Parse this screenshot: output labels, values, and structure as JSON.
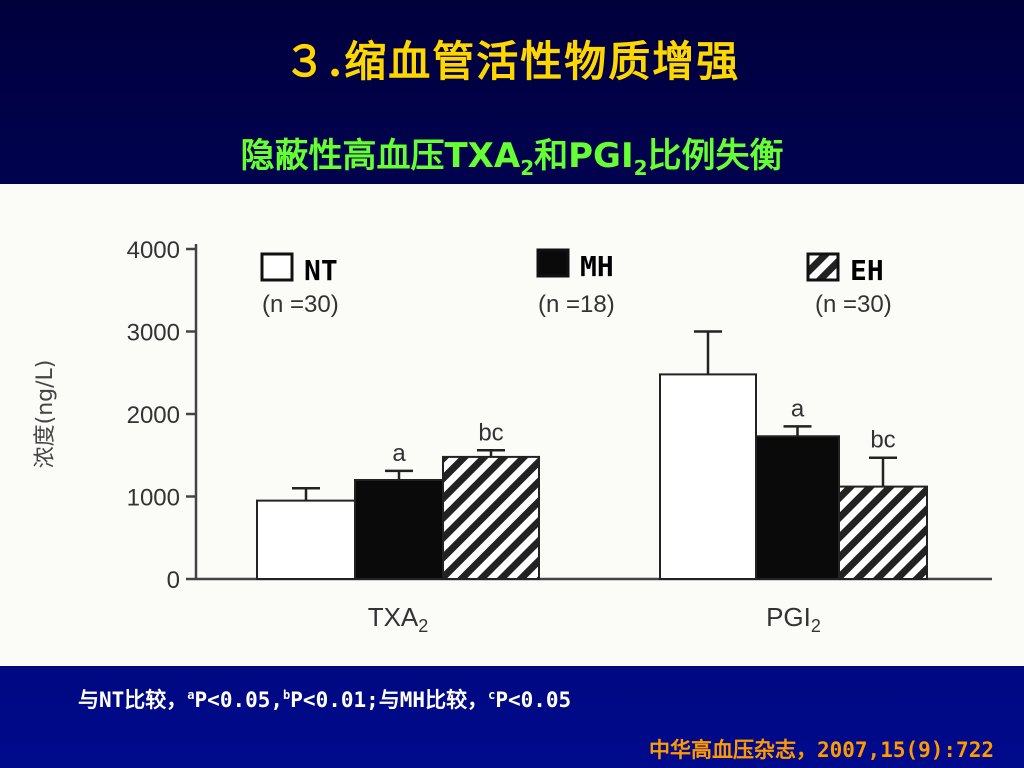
{
  "slide": {
    "title": "３.缩血管活性物质增强",
    "subtitle_part1": "隐蔽性高血压TXA",
    "subtitle_sub1": "2",
    "subtitle_part2": "和PGI",
    "subtitle_sub2": "2",
    "subtitle_part3": "比例失衡",
    "footnote_pre": "与NT比较，",
    "footnote_a_sup": "a",
    "footnote_a": "P<0.05,",
    "footnote_b_sup": "b",
    "footnote_b": "P<0.01;与MH比较，",
    "footnote_c_sup": "c",
    "footnote_c": "P<0.05",
    "source": "中华高血压杂志，2007,15(9):722"
  },
  "chart_data": {
    "type": "bar",
    "ylabel": "浓度(ng/L)",
    "ylim": [
      0,
      4000
    ],
    "yticks": [
      "0",
      "1000",
      "2000",
      "3000",
      "4000"
    ],
    "categories": [
      {
        "main": "TXA",
        "sub": "2"
      },
      {
        "main": "PGI",
        "sub": "2"
      }
    ],
    "series": [
      {
        "name": "NT",
        "n_label": "(n =30)",
        "style": "white",
        "values": [
          950,
          2480
        ],
        "errors": [
          150,
          520
        ],
        "sig": [
          "",
          ""
        ]
      },
      {
        "name": "MH",
        "n_label": "(n =18)",
        "style": "black",
        "values": [
          1200,
          1730
        ],
        "errors": [
          110,
          120
        ],
        "sig": [
          "a",
          "a"
        ]
      },
      {
        "name": "EH",
        "n_label": "(n =30)",
        "style": "hatched",
        "values": [
          1480,
          1120
        ],
        "errors": [
          80,
          350
        ],
        "sig": [
          "bc",
          "bc"
        ]
      }
    ],
    "legend_placement": "top",
    "grid": false
  }
}
